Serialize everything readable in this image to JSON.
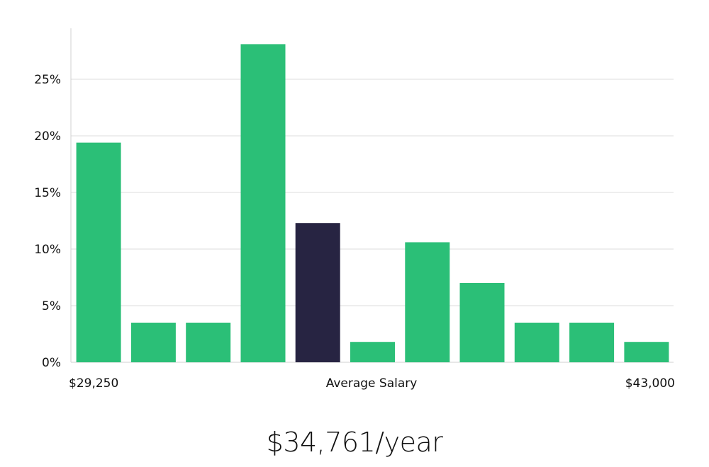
{
  "chart_data": {
    "type": "bar",
    "title": "",
    "xlabel": "",
    "ylabel": "",
    "ylim": [
      0,
      0.295
    ],
    "yticks": [
      0,
      0.05,
      0.1,
      0.15,
      0.2,
      0.25
    ],
    "ytick_labels": [
      "0%",
      "5%",
      "10%",
      "15%",
      "20%",
      "25%"
    ],
    "grid": true,
    "values": [
      0.194,
      0.035,
      0.035,
      0.281,
      0.123,
      0.018,
      0.106,
      0.07,
      0.035,
      0.035,
      0.018
    ],
    "highlight_index": 4,
    "x_labels": {
      "left": "$29,250",
      "center": "Average Salary",
      "right": "$43,000"
    },
    "colors": {
      "bar": "#2bbf77",
      "highlight": "#272442",
      "grid": "#dcdcdc",
      "axis": "#d0d0d0"
    }
  },
  "summary": {
    "average_salary": "$34,761/year"
  }
}
